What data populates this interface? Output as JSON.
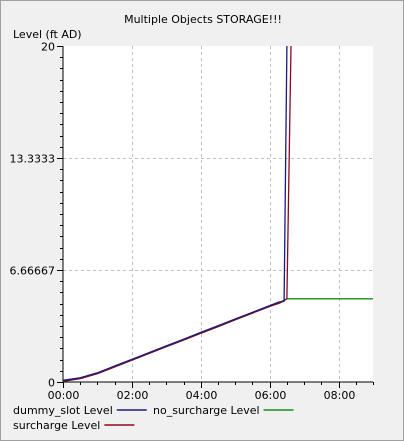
{
  "chart_data": {
    "type": "line",
    "title": "Multiple Objects STORAGE!!!",
    "ylabel": "Level (ft AD)",
    "xlabel": "",
    "xlim": [
      0,
      9
    ],
    "ylim": [
      0,
      20
    ],
    "x_ticks": [
      {
        "value": 0,
        "label": "00:00"
      },
      {
        "value": 2,
        "label": "02:00"
      },
      {
        "value": 4,
        "label": "04:00"
      },
      {
        "value": 6,
        "label": "06:00"
      },
      {
        "value": 8,
        "label": "08:00"
      }
    ],
    "y_ticks": [
      {
        "value": 0,
        "label": "0"
      },
      {
        "value": 6.66667,
        "label": "6.66667"
      },
      {
        "value": 13.3333,
        "label": "13.3333"
      },
      {
        "value": 20,
        "label": "20"
      }
    ],
    "grid": true,
    "legend_position": "bottom",
    "series": [
      {
        "name": "dummy_slot Level",
        "color": "#1a1a80",
        "x": [
          0,
          0.5,
          1,
          1.5,
          2,
          2.5,
          3,
          3.5,
          4,
          4.5,
          5,
          5.5,
          6,
          6.25,
          6.42,
          6.5
        ],
        "y": [
          0.1,
          0.25,
          0.55,
          0.95,
          1.35,
          1.75,
          2.15,
          2.55,
          2.95,
          3.35,
          3.75,
          4.15,
          4.55,
          4.75,
          4.8,
          20
        ]
      },
      {
        "name": "no_surcharge Level",
        "color": "#1a8a1a",
        "x": [
          0,
          0.5,
          1,
          1.5,
          2,
          2.5,
          3,
          3.5,
          4,
          4.5,
          5,
          5.5,
          6,
          6.25,
          6.5,
          9
        ],
        "y": [
          0.05,
          0.2,
          0.5,
          0.9,
          1.3,
          1.7,
          2.1,
          2.5,
          2.9,
          3.3,
          3.7,
          4.1,
          4.5,
          4.7,
          4.95,
          4.95
        ]
      },
      {
        "name": "surcharge Level",
        "color": "#8b0a1a",
        "x": [
          0,
          0.5,
          1,
          1.5,
          2,
          2.5,
          3,
          3.5,
          4,
          4.5,
          5,
          5.5,
          6,
          6.3,
          6.5,
          6.62
        ],
        "y": [
          0.05,
          0.2,
          0.5,
          0.9,
          1.3,
          1.7,
          2.1,
          2.5,
          2.9,
          3.3,
          3.7,
          4.1,
          4.5,
          4.7,
          4.95,
          20
        ]
      }
    ]
  }
}
